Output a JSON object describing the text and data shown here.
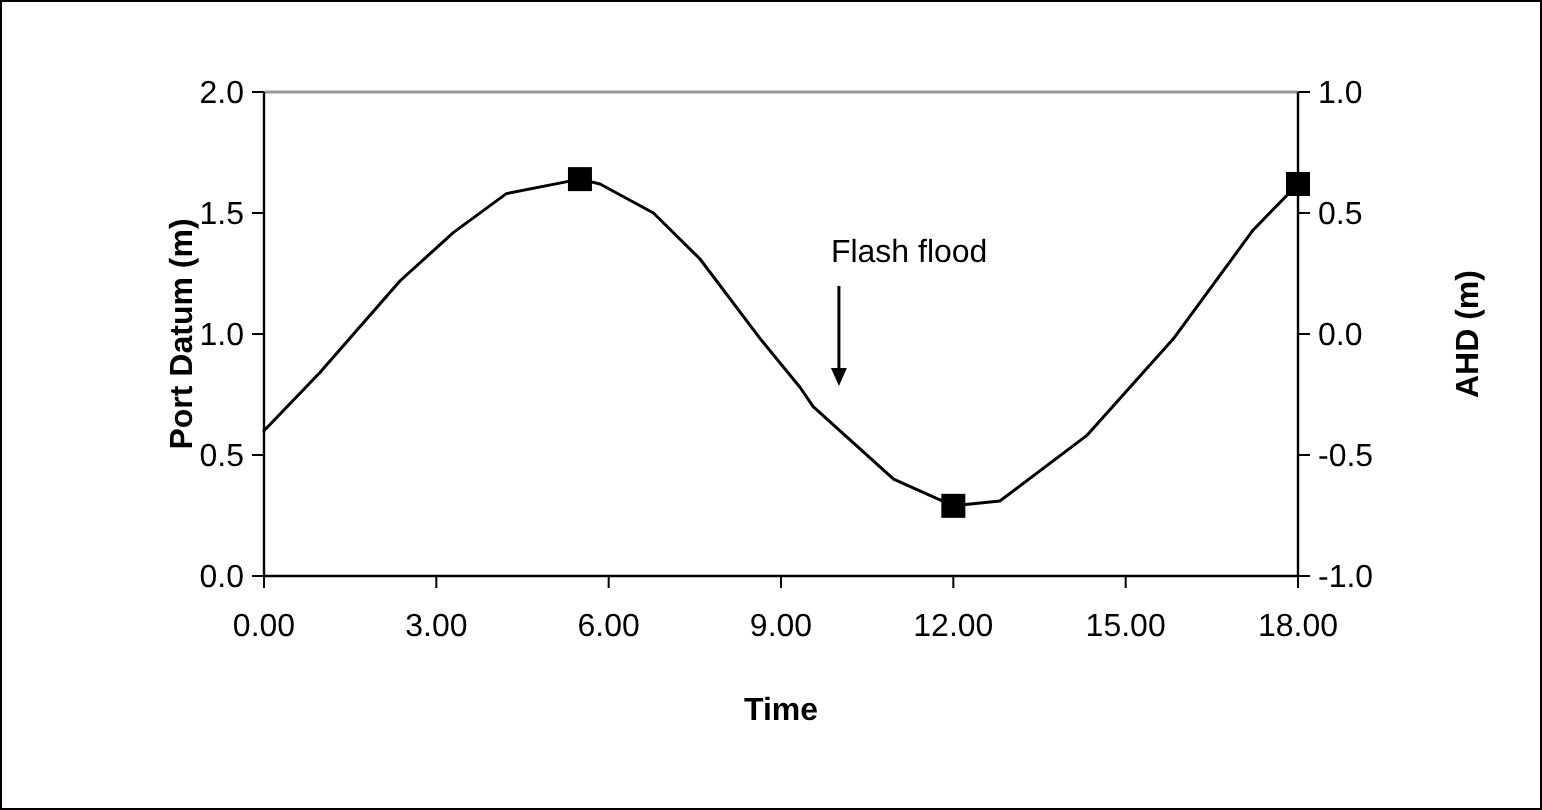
{
  "chart_data": {
    "type": "line",
    "xlabel": "Time",
    "ylabel": "Port Datum (m)",
    "y2label": "AHD (m)",
    "xlim": [
      0,
      18
    ],
    "ylim": [
      0,
      2
    ],
    "y2lim": [
      -1,
      1
    ],
    "xticks": [
      {
        "value": 0,
        "label": "0.00"
      },
      {
        "value": 3,
        "label": "3.00"
      },
      {
        "value": 6,
        "label": "6.00"
      },
      {
        "value": 9,
        "label": "9.00"
      },
      {
        "value": 12,
        "label": "12.00"
      },
      {
        "value": 15,
        "label": "15.00"
      },
      {
        "value": 18,
        "label": "18.00"
      }
    ],
    "yticks": [
      {
        "value": 0,
        "label": "0.0"
      },
      {
        "value": 0.5,
        "label": "0.5"
      },
      {
        "value": 1,
        "label": "1.0"
      },
      {
        "value": 1.5,
        "label": "1.5"
      },
      {
        "value": 2,
        "label": "2.0"
      }
    ],
    "y2ticks": [
      {
        "value": -1,
        "label": "-1.0"
      },
      {
        "value": -0.5,
        "label": "-0.5"
      },
      {
        "value": 0,
        "label": "0.0"
      },
      {
        "value": 0.5,
        "label": "0.5"
      },
      {
        "value": 1,
        "label": "1.0"
      }
    ],
    "grid": false,
    "annotations": [
      "Flash flood"
    ],
    "series": [
      {
        "color": "#000000",
        "marker": "none",
        "line_style": "solid",
        "x": [
          0,
          0.97,
          2.37,
          3.3,
          4.22,
          5.5,
          5.85,
          6.78,
          7.59,
          8.64,
          9.33,
          9.56,
          10.96,
          12,
          12.81,
          14.32,
          15.83,
          17.22,
          18
        ],
        "values": [
          0.6,
          0.84,
          1.22,
          1.42,
          1.58,
          1.64,
          1.62,
          1.5,
          1.31,
          0.98,
          0.78,
          0.7,
          0.4,
          0.29,
          0.31,
          0.58,
          0.98,
          1.43,
          1.62
        ]
      },
      {
        "type": "scatter",
        "color": "#000000",
        "marker": "square",
        "x": [
          5.5,
          12,
          18
        ],
        "values": [
          1.64,
          0.29,
          1.62
        ]
      }
    ]
  }
}
